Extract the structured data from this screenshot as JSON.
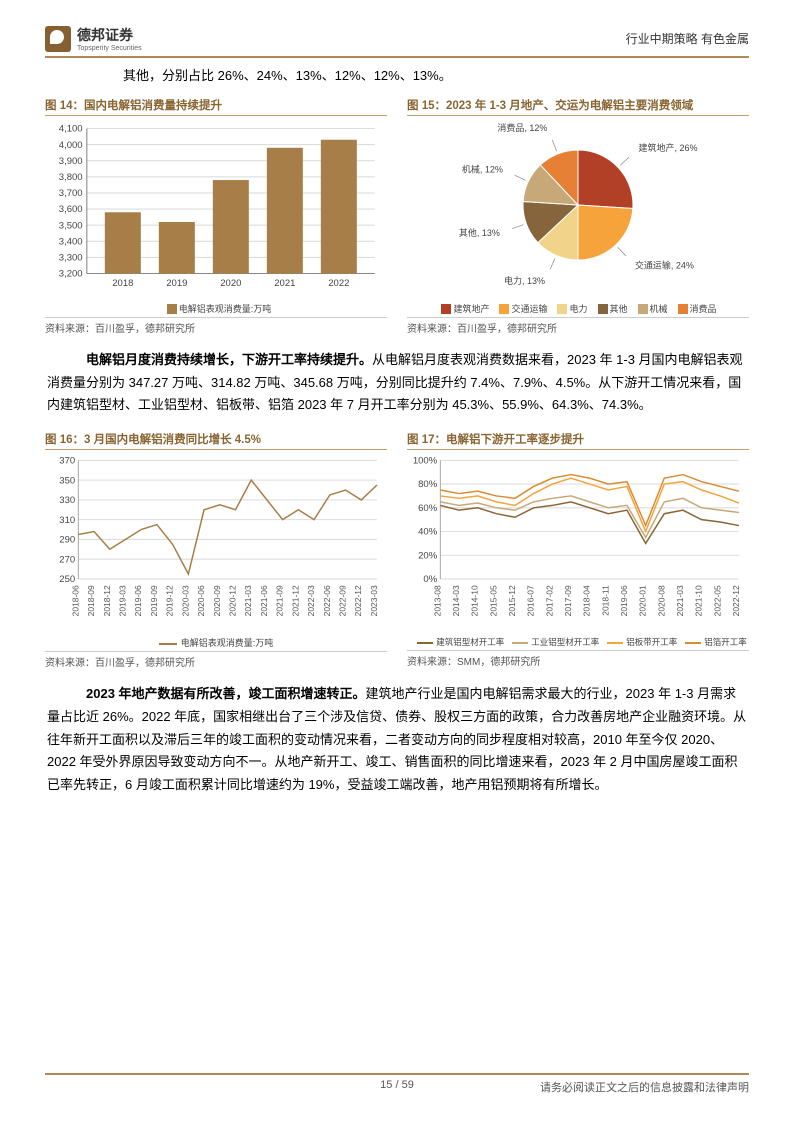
{
  "header": {
    "company": "德邦证券",
    "company_en": "Topsperity Securities",
    "right": "行业中期策略  有色金属"
  },
  "intro": "其他，分别占比 26%、24%、13%、12%、12%、13%。",
  "fig14": {
    "title": "图 14：国内电解铝消费量持续提升",
    "type": "bar",
    "categories": [
      "2018",
      "2019",
      "2020",
      "2021",
      "2022"
    ],
    "values": [
      3580,
      3520,
      3780,
      3980,
      4030
    ],
    "ylim": [
      3200,
      4100
    ],
    "ytick_step": 100,
    "bar_color": "#a77e47",
    "legend": "电解铝表观消费量:万吨",
    "source": "资料来源：百川盈孚，德邦研究所"
  },
  "fig15": {
    "title": "图 15：2023 年 1-3 月地产、交运为电解铝主要消费领域",
    "type": "pie",
    "slices": [
      {
        "label": "建筑地产",
        "value": 26,
        "color": "#b24027",
        "display": "建筑地产, 26%"
      },
      {
        "label": "交通运输",
        "value": 24,
        "color": "#f5a33a",
        "display": "交通运输, 24%"
      },
      {
        "label": "电力",
        "value": 13,
        "color": "#f2d38a",
        "display": "电力, 13%"
      },
      {
        "label": "其他",
        "value": 13,
        "color": "#86653d",
        "display": "其他, 13%"
      },
      {
        "label": "机械",
        "value": 12,
        "color": "#c7a878",
        "display": "机械, 12%"
      },
      {
        "label": "消费品",
        "value": 12,
        "color": "#e58035",
        "display": "消费品, 12%"
      }
    ],
    "legend_items": [
      "建筑地产",
      "交通运输",
      "电力",
      "其他",
      "机械",
      "消费品"
    ],
    "legend_colors": [
      "#b24027",
      "#f5a33a",
      "#f2d38a",
      "#86653d",
      "#c7a878",
      "#e58035"
    ],
    "source": "资料来源：百川盈孚，德邦研究所"
  },
  "para1": "电解铝月度消费持续增长，下游开工率持续提升。从电解铝月度表观消费数据来看，2023 年 1-3 月国内电解铝表观消费量分别为 347.27 万吨、314.82 万吨、345.68 万吨，分别同比提升约 7.4%、7.9%、4.5%。从下游开工情况来看，国内建筑铝型材、工业铝型材、铝板带、铝箔 2023 年 7 月开工率分别为 45.3%、55.9%、64.3%、74.3%。",
  "para1_bold": "电解铝月度消费持续增长，下游开工率持续提升。",
  "fig16": {
    "title": "图 16：3 月国内电解铝消费同比增长 4.5%",
    "type": "line",
    "ylim": [
      250,
      370
    ],
    "yticks": [
      250,
      270,
      290,
      310,
      330,
      350,
      370
    ],
    "xlabels": [
      "2018-06",
      "2018-09",
      "2018-12",
      "2019-03",
      "2019-06",
      "2019-09",
      "2019-12",
      "2020-03",
      "2020-06",
      "2020-09",
      "2020-12",
      "2021-03",
      "2021-06",
      "2021-09",
      "2021-12",
      "2022-03",
      "2022-06",
      "2022-09",
      "2022-12",
      "2023-03"
    ],
    "series": [
      {
        "name": "电解铝表观消费量:万吨",
        "color": "#a77e47",
        "values": [
          295,
          298,
          280,
          290,
          300,
          305,
          285,
          255,
          320,
          325,
          320,
          350,
          330,
          310,
          320,
          310,
          335,
          340,
          330,
          345
        ]
      }
    ],
    "source": "资料来源：百川盈孚，德邦研究所"
  },
  "fig17": {
    "title": "图 17：电解铝下游开工率逐步提升",
    "type": "multiline",
    "ylim": [
      0,
      100
    ],
    "yticks": [
      0,
      20,
      40,
      60,
      80,
      100
    ],
    "xlabels": [
      "2013-08",
      "2014-03",
      "2014-10",
      "2015-05",
      "2015-12",
      "2016-07",
      "2017-02",
      "2017-09",
      "2018-04",
      "2018-11",
      "2019-06",
      "2020-01",
      "2020-08",
      "2021-03",
      "2021-10",
      "2022-05",
      "2022-12"
    ],
    "series": [
      {
        "name": "建筑铝型材开工率",
        "color": "#8a6532",
        "values": [
          62,
          58,
          60,
          55,
          52,
          60,
          62,
          65,
          60,
          55,
          58,
          30,
          55,
          58,
          50,
          48,
          45
        ]
      },
      {
        "name": "工业铝型材开工率",
        "color": "#c7a878",
        "values": [
          65,
          62,
          64,
          60,
          58,
          65,
          68,
          70,
          65,
          60,
          62,
          35,
          65,
          68,
          60,
          58,
          56
        ]
      },
      {
        "name": "铝板带开工率",
        "color": "#f5a33a",
        "values": [
          70,
          68,
          70,
          65,
          62,
          72,
          80,
          85,
          80,
          75,
          78,
          40,
          80,
          82,
          75,
          70,
          64
        ]
      },
      {
        "name": "铝箔开工率",
        "color": "#d98b2e",
        "values": [
          75,
          72,
          74,
          70,
          68,
          78,
          85,
          88,
          85,
          80,
          82,
          45,
          85,
          88,
          82,
          78,
          74
        ]
      }
    ],
    "source": "资料来源：SMM，德邦研究所"
  },
  "para2": "2023 年地产数据有所改善，竣工面积增速转正。建筑地产行业是国内电解铝需求最大的行业，2023 年 1-3 月需求量占比近 26%。2022 年底，国家相继出台了三个涉及信贷、债券、股权三方面的政策，合力改善房地产企业融资环境。从往年新开工面积以及滞后三年的竣工面积的变动情况来看，二者变动方向的同步程度相对较高，2010 年至今仅 2020、2022 年受外界原因导致变动方向不一。从地产新开工、竣工、销售面积的同比增速来看，2023 年 2 月中国房屋竣工面积已率先转正，6 月竣工面积累计同比增速约为 19%，受益竣工端改善，地产用铝预期将有所增长。",
  "para2_bold": "2023 年地产数据有所改善，竣工面积增速转正。",
  "footer": {
    "page": "15 / 59",
    "disclaimer": "请务必阅读正文之后的信息披露和法律声明"
  }
}
